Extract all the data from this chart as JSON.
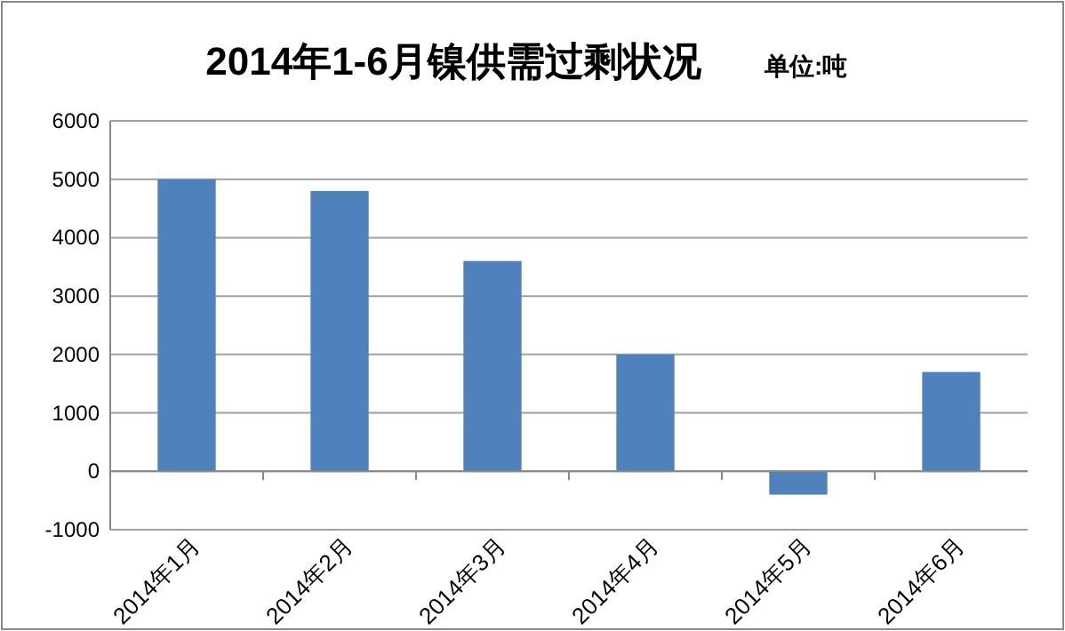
{
  "chart_data": {
    "type": "bar",
    "title": "2014年1-6月镍供需过剩状况",
    "subtitle": "单位:吨",
    "categories": [
      "2014年1月",
      "2014年2月",
      "2014年3月",
      "2014年4月",
      "2014年5月",
      "2014年6月"
    ],
    "values": [
      5000,
      4800,
      3600,
      2000,
      -400,
      1700
    ],
    "color": "#4f81bd",
    "ylim": [
      -1000,
      6000
    ],
    "yticks": [
      -1000,
      0,
      1000,
      2000,
      3000,
      4000,
      5000,
      6000
    ],
    "grid": "y"
  }
}
